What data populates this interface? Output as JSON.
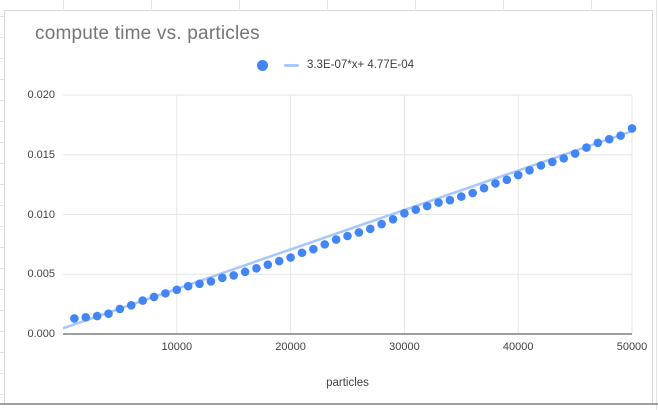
{
  "chart": {
    "title": "compute time vs. particles",
    "legend": {
      "series_marker": "dot",
      "trendline_marker": "dash",
      "trendline_label": "3.3E-07*x+ 4.77E-04"
    },
    "colors": {
      "point": "#4285f4",
      "trendline": "#a8c7fa",
      "gridline": "#e6e6e6",
      "axis_line": "#9e9e9e",
      "title_text": "#757575",
      "tick_text": "#424242",
      "legend_text": "#3c4043",
      "backdrop_gridline": "#e2e2e2",
      "card_border": "#d9d9d9"
    }
  },
  "chart_data": {
    "type": "scatter",
    "title": "compute time vs. particles",
    "xlabel": "particles",
    "ylabel": "",
    "xlim": [
      0,
      50000
    ],
    "ylim": [
      0,
      0.02
    ],
    "x_ticks": [
      10000,
      20000,
      30000,
      40000,
      50000
    ],
    "y_ticks": [
      "0.000",
      "0.005",
      "0.010",
      "0.015",
      "0.020"
    ],
    "y_tick_values": [
      0,
      0.005,
      0.01,
      0.015,
      0.02
    ],
    "grid": true,
    "legend_position": "top-center",
    "x": [
      1000,
      2000,
      3000,
      4000,
      5000,
      6000,
      7000,
      8000,
      9000,
      10000,
      11000,
      12000,
      13000,
      14000,
      15000,
      16000,
      17000,
      18000,
      19000,
      20000,
      21000,
      22000,
      23000,
      24000,
      25000,
      26000,
      27000,
      28000,
      29000,
      30000,
      31000,
      32000,
      33000,
      34000,
      35000,
      36000,
      37000,
      38000,
      39000,
      40000,
      41000,
      42000,
      43000,
      44000,
      45000,
      46000,
      47000,
      48000,
      49000,
      50000
    ],
    "series": [
      {
        "name": "compute time",
        "values": [
          0.0013,
          0.0014,
          0.0015,
          0.0017,
          0.0021,
          0.0024,
          0.0028,
          0.0031,
          0.0034,
          0.0037,
          0.004,
          0.0042,
          0.0044,
          0.0047,
          0.0049,
          0.0052,
          0.0055,
          0.0058,
          0.0061,
          0.0064,
          0.0068,
          0.0071,
          0.0075,
          0.0079,
          0.0082,
          0.0085,
          0.0088,
          0.0092,
          0.0096,
          0.0101,
          0.0104,
          0.0107,
          0.011,
          0.0112,
          0.0115,
          0.0118,
          0.0122,
          0.0126,
          0.0129,
          0.0133,
          0.0137,
          0.0141,
          0.0144,
          0.0147,
          0.0151,
          0.0156,
          0.016,
          0.0163,
          0.0166,
          0.0172
        ]
      }
    ],
    "trendline": {
      "label": "3.3E-07*x+ 4.77E-04",
      "slope": 3.3e-07,
      "intercept": 0.000477
    }
  }
}
